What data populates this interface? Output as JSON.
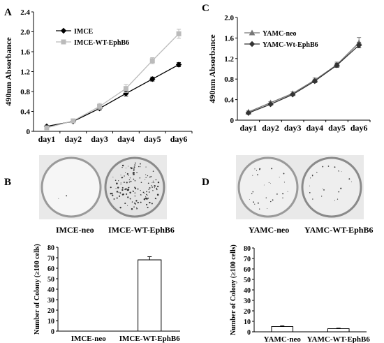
{
  "panels": {
    "A": "A",
    "B": "B",
    "C": "C",
    "D": "D"
  },
  "plates": {
    "B": [
      "IMCE-neo",
      "IMCE-WT-EphB6"
    ],
    "D": [
      "YAMC-neo",
      "YAMC-WT-EphB6"
    ]
  },
  "chart_data": [
    {
      "panel": "A",
      "type": "line",
      "categories": [
        "day1",
        "day2",
        "day3",
        "day4",
        "day5",
        "day6"
      ],
      "ylabel": "490nm Absorbance",
      "xlabel": "",
      "ylim": [
        0,
        2.4
      ],
      "yticks": [
        "0",
        "0.4",
        "0.8",
        "1.2",
        "1.6",
        "2.0",
        "2.4"
      ],
      "legend_position": "top-left",
      "series": [
        {
          "name": "IMCE",
          "color": "#000000",
          "marker": "diamond",
          "values": [
            0.1,
            0.2,
            0.46,
            0.76,
            1.05,
            1.34
          ],
          "errors": [
            0.02,
            0.02,
            0.03,
            0.05,
            0.04,
            0.04
          ]
        },
        {
          "name": "IMCE-WT-EphB6",
          "color": "#bbbbbb",
          "marker": "square",
          "values": [
            0.07,
            0.21,
            0.5,
            0.86,
            1.42,
            1.96
          ],
          "errors": [
            0.02,
            0.02,
            0.06,
            0.08,
            0.06,
            0.09
          ]
        }
      ]
    },
    {
      "panel": "C",
      "type": "line",
      "categories": [
        "day1",
        "day2",
        "day3",
        "day4",
        "day5",
        "day6"
      ],
      "ylabel": "490nm Absorbance",
      "xlabel": "",
      "ylim": [
        0,
        2.0
      ],
      "yticks": [
        "0",
        "0.4",
        "0.8",
        "1.2",
        "1.6",
        "2.0"
      ],
      "legend_position": "top-left",
      "series": [
        {
          "name": "YAMC-neo",
          "color": "#777777",
          "marker": "triangle",
          "values": [
            0.16,
            0.34,
            0.52,
            0.78,
            1.08,
            1.51
          ],
          "errors": [
            0.02,
            0.02,
            0.03,
            0.04,
            0.05,
            0.1
          ]
        },
        {
          "name": "YAMC-Wt-EphB6",
          "color": "#333333",
          "marker": "diamond",
          "values": [
            0.14,
            0.31,
            0.5,
            0.76,
            1.07,
            1.46
          ],
          "errors": [
            0.02,
            0.02,
            0.02,
            0.03,
            0.04,
            0.05
          ]
        }
      ]
    },
    {
      "panel": "B",
      "type": "bar",
      "categories": [
        "IMCE-neo",
        "IMCE-WT-EphB6"
      ],
      "values": [
        0,
        68
      ],
      "errors": [
        0,
        3
      ],
      "ylabel": "Number of Colony (≥100 cells)",
      "ylim": [
        0,
        80
      ],
      "yticks": [
        "0",
        "10",
        "20",
        "30",
        "40",
        "50",
        "60",
        "70",
        "80"
      ]
    },
    {
      "panel": "D",
      "type": "bar",
      "categories": [
        "YAMC-neo",
        "YAMC-WT-EphB6"
      ],
      "values": [
        5,
        3
      ],
      "errors": [
        0.7,
        0.5
      ],
      "ylabel": "Number of Colony (≥100 cells)",
      "ylim": [
        0,
        80
      ],
      "yticks": [
        "0",
        "10",
        "20",
        "30",
        "40",
        "50",
        "60",
        "70",
        "80"
      ]
    }
  ]
}
